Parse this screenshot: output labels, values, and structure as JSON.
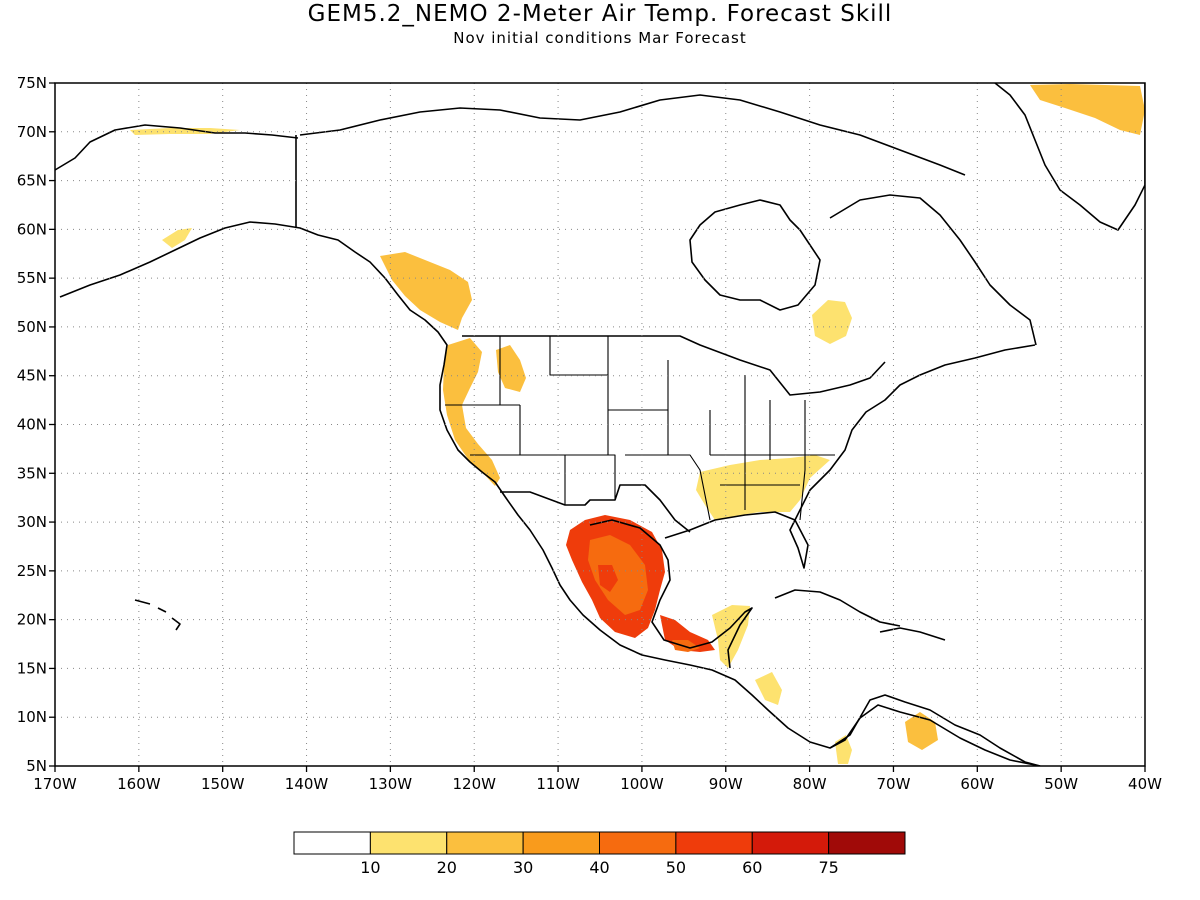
{
  "header": {
    "title": "GEM5.2_NEMO 2-Meter Air Temp. Forecast Skill",
    "subtitle": "Nov initial conditions  Mar Forecast"
  },
  "map": {
    "region": "North America",
    "lon_range": [
      -170,
      -40
    ],
    "lat_range": [
      5,
      75
    ],
    "lon_ticks": [
      "170W",
      "160W",
      "150W",
      "140W",
      "130W",
      "120W",
      "110W",
      "100W",
      "90W",
      "80W",
      "70W",
      "60W",
      "50W",
      "40W"
    ],
    "lat_ticks": [
      "75N",
      "70N",
      "65N",
      "60N",
      "55N",
      "50N",
      "45N",
      "40N",
      "35N",
      "30N",
      "25N",
      "20N",
      "15N",
      "10N",
      "5N"
    ],
    "grid": "dotted",
    "coastline_color": "#000000"
  },
  "colorbar": {
    "labels": [
      "10",
      "20",
      "30",
      "40",
      "50",
      "60",
      "75"
    ],
    "colors": [
      "#ffffff",
      "#fde26f",
      "#fbbf3e",
      "#f99b1c",
      "#f66b0f",
      "#ef3c0b",
      "#d41a0a",
      "#a00a08"
    ]
  },
  "skill_regions": [
    {
      "name": "greenland-east",
      "level": 20
    },
    {
      "name": "alaska-north",
      "level": 10
    },
    {
      "name": "alaska-south",
      "level": 10
    },
    {
      "name": "bc-coast",
      "level": 20
    },
    {
      "name": "us-west-coast",
      "level": 20
    },
    {
      "name": "hudson-bay-east",
      "level": 10
    },
    {
      "name": "northern-rockies",
      "level": 20
    },
    {
      "name": "southeast-us",
      "level": 10
    },
    {
      "name": "northern-mexico",
      "level": 50
    },
    {
      "name": "southern-mexico",
      "level": 50
    },
    {
      "name": "yucatan",
      "level": 10
    },
    {
      "name": "central-america",
      "level": 10
    },
    {
      "name": "venezuela",
      "level": 20
    },
    {
      "name": "colombia",
      "level": 10
    }
  ]
}
